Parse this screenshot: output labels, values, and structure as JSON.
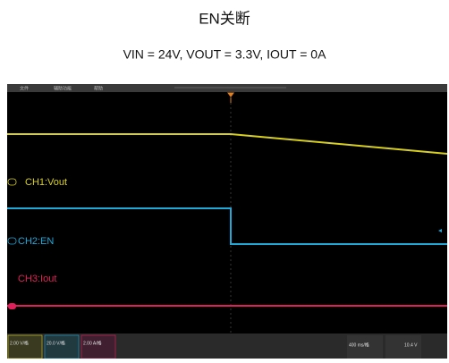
{
  "header": {
    "title": "EN关断",
    "subtitle": "VIN = 24V, VOUT = 3.3V, IOUT = 0A"
  },
  "menu": [
    "文件",
    "辅助功能",
    "帮助"
  ],
  "channels": [
    {
      "label": "CH1:Vout",
      "scale": "2.00 V/格"
    },
    {
      "label": "CH2:EN",
      "scale": "20.0 V/格"
    },
    {
      "label": "CH3:Iout",
      "scale": "2.00 A/格"
    }
  ],
  "status": {
    "timebase": "400 ms/格",
    "trigger": "10.4 V"
  }
}
